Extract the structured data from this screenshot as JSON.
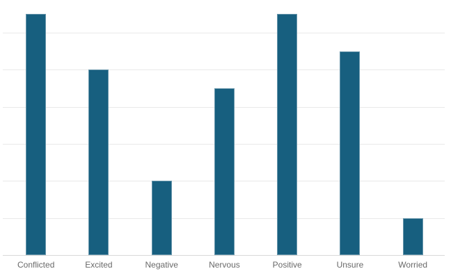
{
  "chart_data": {
    "type": "bar",
    "title": "",
    "xlabel": "",
    "ylabel": "",
    "categories": [
      "Conflicted",
      "Excited",
      "Negative",
      "Nervous",
      "Positive",
      "Unsure",
      "Worried"
    ],
    "values": [
      6.5,
      5,
      2,
      4.5,
      6.5,
      5.5,
      1
    ],
    "value_unit": "gridline-intervals (y-axis has no visible tick labels)",
    "ylim": [
      0,
      6.88
    ],
    "gridlines_at": [
      1,
      2,
      3,
      4,
      5,
      6
    ],
    "grid": true,
    "legend": "none",
    "y_tick_labels": []
  },
  "style": {
    "bar_color": "#175F7F",
    "gridline_color": "#e9e9e9",
    "baseline_color": "#d8d8d8",
    "label_color": "#696969",
    "background_color": "#ffffff"
  }
}
